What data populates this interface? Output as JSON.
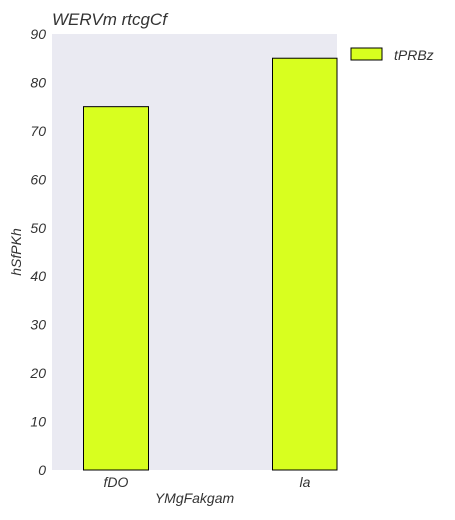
{
  "chart_data": {
    "type": "bar",
    "title": "WERVm rtcgCf",
    "xlabel": "YMgFakgam",
    "ylabel": "hSfPKh",
    "categories": [
      "fDO",
      "la"
    ],
    "series": [
      {
        "name": "tPRBz",
        "values": [
          75,
          85
        ],
        "color": "#d8ff1f"
      }
    ],
    "ylim": [
      0,
      90
    ],
    "yticks": [
      0,
      10,
      20,
      30,
      40,
      50,
      60,
      70,
      80,
      90
    ],
    "grid": false,
    "legend_position": "outside-top-right",
    "colors": {
      "plot_background": "#eaeaf2",
      "bar_edge": "#000000"
    }
  }
}
